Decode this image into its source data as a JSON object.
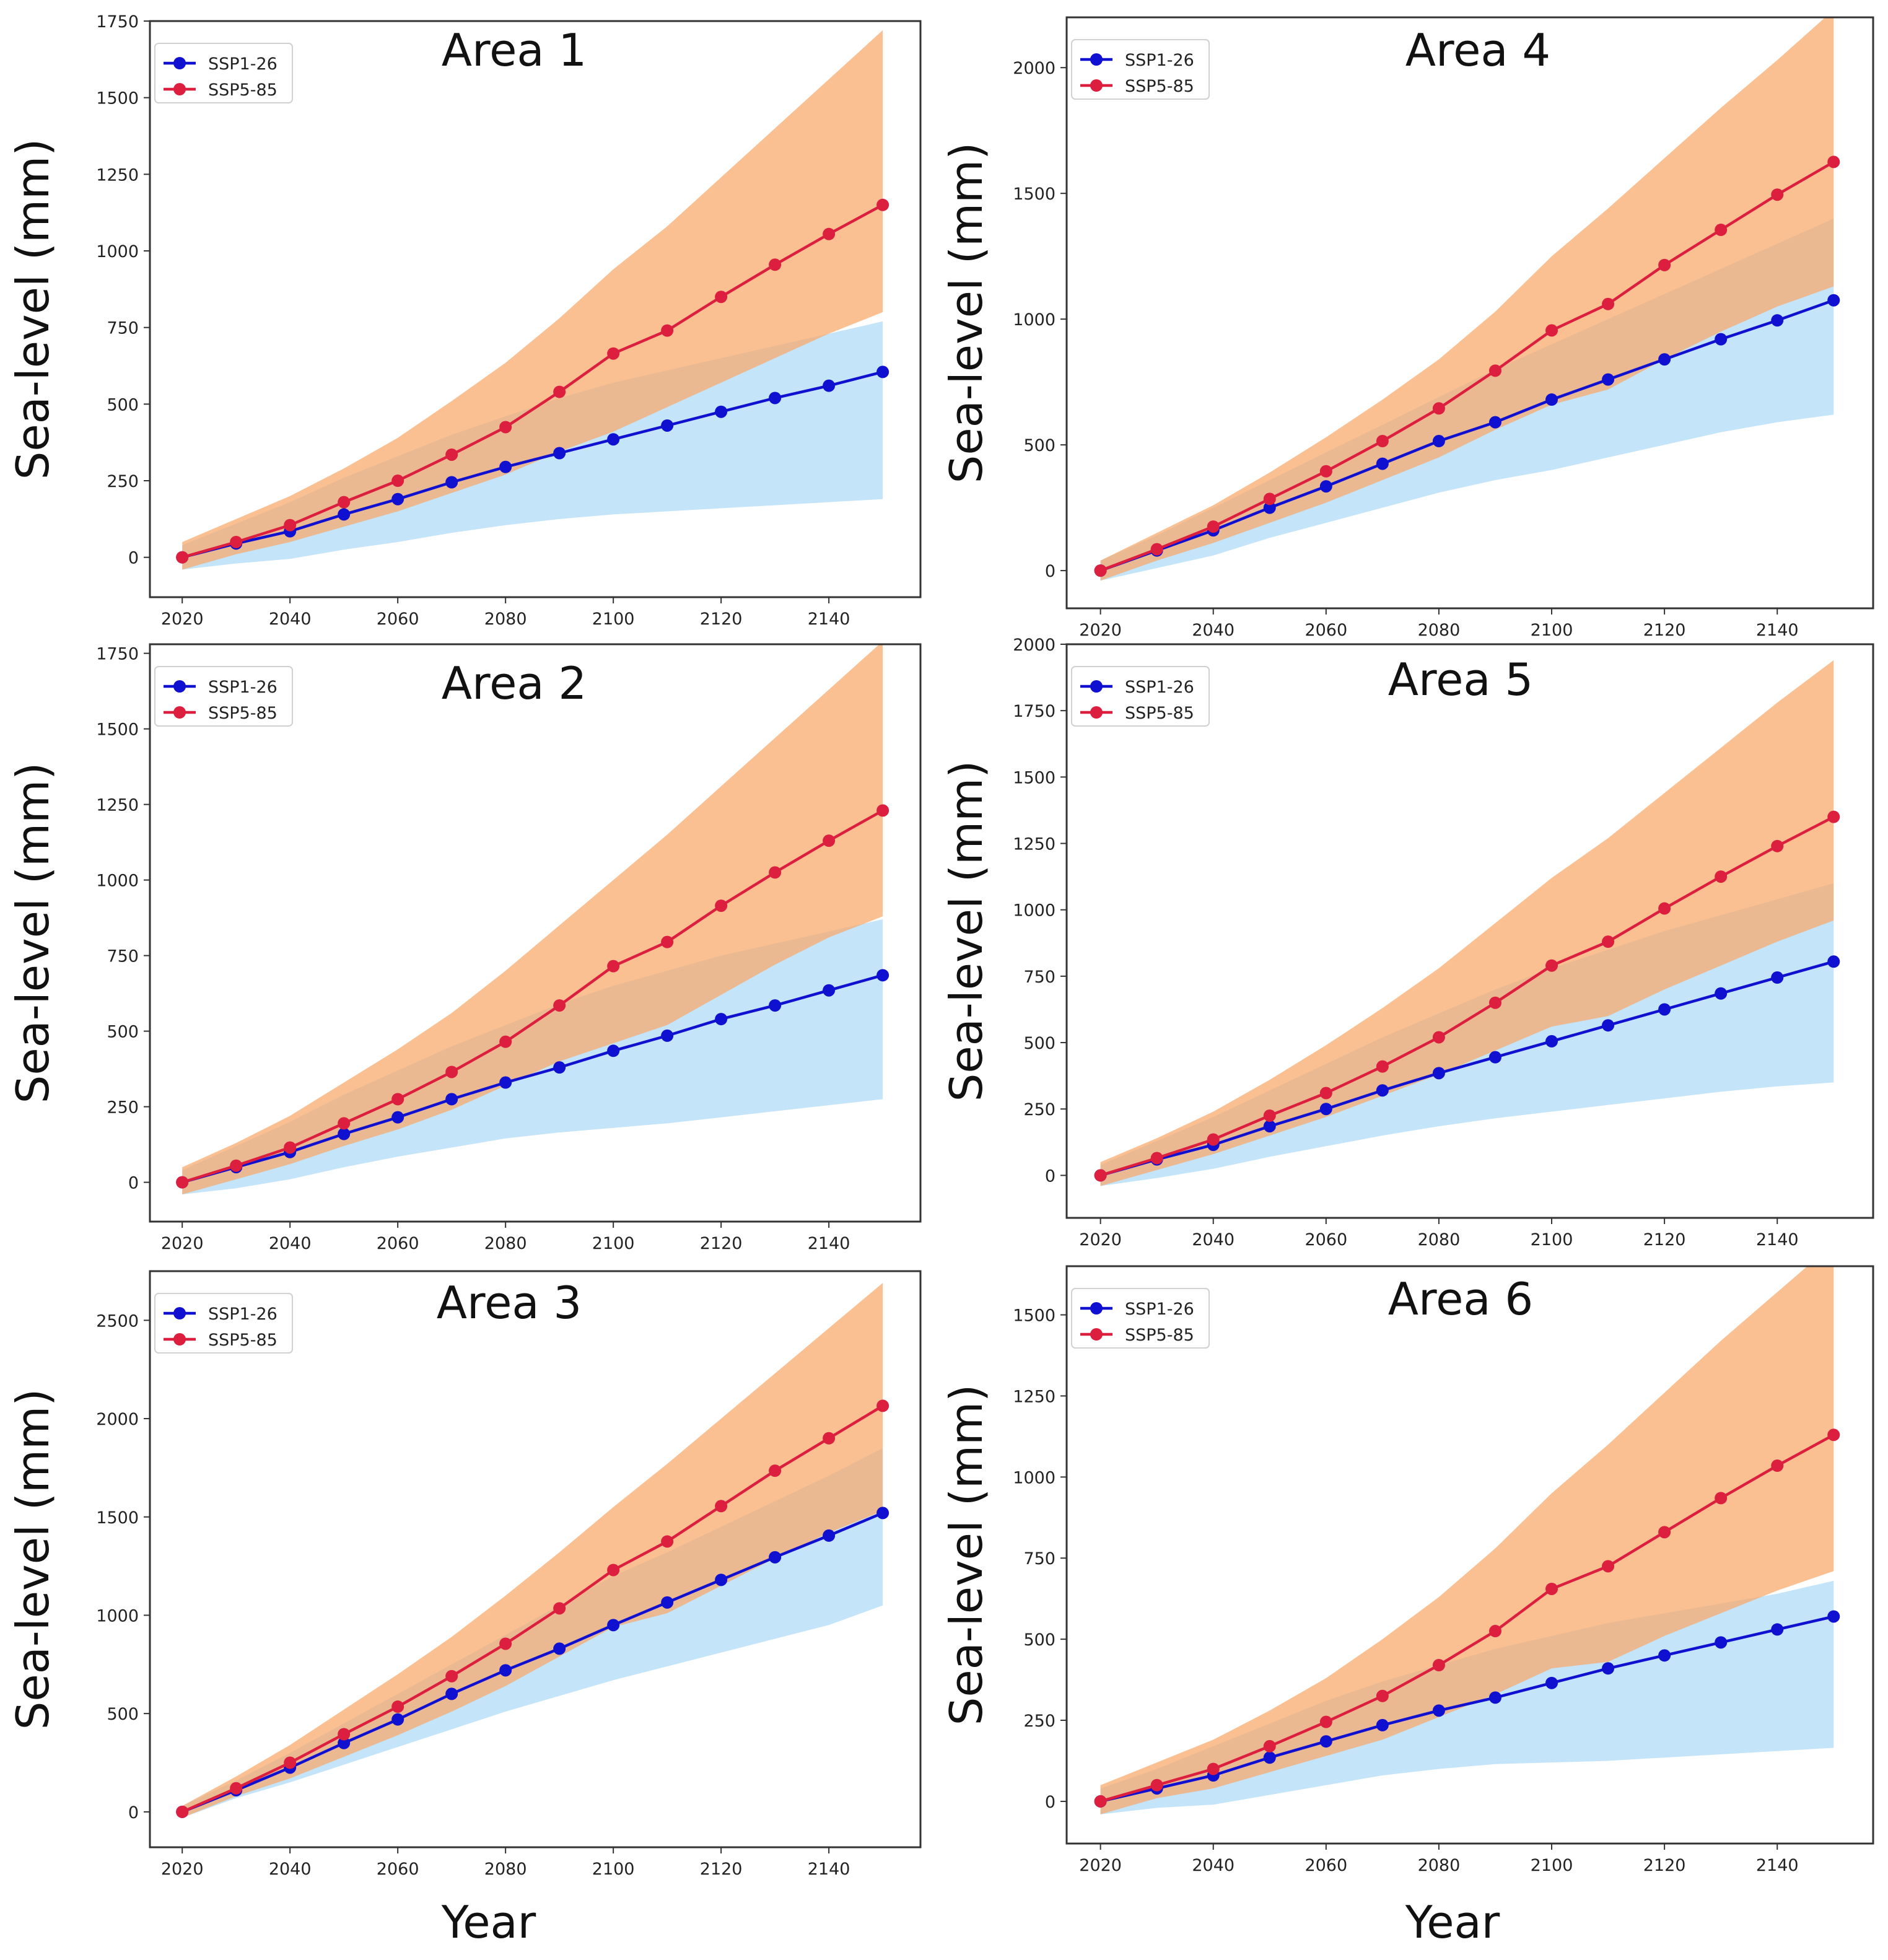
{
  "figure": {
    "bottom_xlabels": [
      "Year",
      "Year"
    ],
    "colors": {
      "ssp126_line": "#1010d0",
      "ssp585_line": "#dc1f3f",
      "ssp126_band": "#9fd3f5",
      "ssp585_band": "#f9a868",
      "axes_edge": "#333333"
    }
  },
  "chart_data": [
    {
      "type": "line",
      "title": "Area 1",
      "xlabel": "",
      "ylabel": "Sea-level (mm)",
      "xlim": [
        2014,
        2157
      ],
      "ylim": [
        -130,
        1750
      ],
      "xticks": [
        2020,
        2040,
        2060,
        2080,
        2100,
        2120,
        2140
      ],
      "yticks": [
        0,
        250,
        500,
        750,
        1000,
        1250,
        1500,
        1750
      ],
      "legend": "top-left",
      "x": [
        2020,
        2030,
        2040,
        2050,
        2060,
        2070,
        2080,
        2090,
        2100,
        2110,
        2120,
        2130,
        2140,
        2150
      ],
      "series": [
        {
          "name": "SSP1-26",
          "color": "#1010d0",
          "values": [
            0,
            45,
            85,
            140,
            190,
            245,
            295,
            340,
            385,
            430,
            475,
            520,
            560,
            605
          ],
          "lower": [
            -40,
            -20,
            -5,
            25,
            50,
            80,
            105,
            125,
            140,
            150,
            160,
            170,
            180,
            190
          ],
          "upper": [
            40,
            110,
            180,
            260,
            330,
            400,
            460,
            520,
            570,
            610,
            650,
            690,
            730,
            770
          ]
        },
        {
          "name": "SSP5-85",
          "color": "#dc1f3f",
          "values": [
            0,
            50,
            105,
            180,
            250,
            335,
            425,
            540,
            665,
            740,
            850,
            955,
            1055,
            1150
          ],
          "lower": [
            -40,
            10,
            50,
            100,
            150,
            210,
            270,
            345,
            410,
            490,
            570,
            650,
            730,
            800
          ],
          "upper": [
            50,
            125,
            200,
            290,
            390,
            510,
            635,
            780,
            940,
            1080,
            1240,
            1400,
            1560,
            1720
          ]
        }
      ]
    },
    {
      "type": "line",
      "title": "Area 4",
      "xlabel": "",
      "ylabel": "Sea-level (mm)",
      "xlim": [
        2014,
        2157
      ],
      "ylim": [
        -150,
        2200
      ],
      "xticks": [
        2020,
        2040,
        2060,
        2080,
        2100,
        2120,
        2140
      ],
      "yticks": [
        0,
        500,
        1000,
        1500,
        2000
      ],
      "legend": "top-left",
      "x": [
        2020,
        2030,
        2040,
        2050,
        2060,
        2070,
        2080,
        2090,
        2100,
        2110,
        2120,
        2130,
        2140,
        2150
      ],
      "series": [
        {
          "name": "SSP1-26",
          "color": "#1010d0",
          "values": [
            0,
            80,
            160,
            250,
            335,
            425,
            515,
            590,
            680,
            760,
            840,
            920,
            995,
            1075
          ],
          "lower": [
            -40,
            10,
            60,
            130,
            190,
            250,
            310,
            360,
            400,
            450,
            500,
            550,
            590,
            620
          ],
          "upper": [
            40,
            140,
            250,
            360,
            470,
            580,
            690,
            800,
            900,
            1000,
            1100,
            1200,
            1300,
            1400
          ]
        },
        {
          "name": "SSP5-85",
          "color": "#dc1f3f",
          "values": [
            0,
            85,
            175,
            285,
            395,
            515,
            645,
            795,
            955,
            1060,
            1215,
            1355,
            1495,
            1625
          ],
          "lower": [
            -40,
            40,
            110,
            190,
            270,
            360,
            450,
            560,
            660,
            720,
            840,
            950,
            1050,
            1130
          ],
          "upper": [
            40,
            150,
            260,
            390,
            530,
            680,
            840,
            1030,
            1250,
            1440,
            1640,
            1840,
            2030,
            2230
          ]
        }
      ]
    },
    {
      "type": "line",
      "title": "Area 2",
      "xlabel": "",
      "ylabel": "Sea-level (mm)",
      "xlim": [
        2014,
        2157
      ],
      "ylim": [
        -130,
        1780
      ],
      "xticks": [
        2020,
        2040,
        2060,
        2080,
        2100,
        2120,
        2140
      ],
      "yticks": [
        0,
        250,
        500,
        750,
        1000,
        1250,
        1500,
        1750
      ],
      "legend": "top-left",
      "x": [
        2020,
        2030,
        2040,
        2050,
        2060,
        2070,
        2080,
        2090,
        2100,
        2110,
        2120,
        2130,
        2140,
        2150
      ],
      "series": [
        {
          "name": "SSP1-26",
          "color": "#1010d0",
          "values": [
            0,
            50,
            100,
            160,
            215,
            275,
            330,
            380,
            435,
            485,
            540,
            585,
            635,
            685
          ],
          "lower": [
            -40,
            -20,
            10,
            50,
            85,
            115,
            145,
            165,
            180,
            195,
            215,
            235,
            255,
            275
          ],
          "upper": [
            40,
            120,
            200,
            290,
            370,
            450,
            520,
            590,
            650,
            700,
            750,
            790,
            830,
            870
          ]
        },
        {
          "name": "SSP5-85",
          "color": "#dc1f3f",
          "values": [
            0,
            55,
            115,
            195,
            275,
            365,
            465,
            585,
            715,
            795,
            915,
            1025,
            1130,
            1230
          ],
          "lower": [
            -40,
            10,
            60,
            120,
            175,
            240,
            320,
            400,
            460,
            520,
            620,
            720,
            810,
            880
          ],
          "upper": [
            50,
            130,
            220,
            330,
            440,
            560,
            700,
            850,
            1000,
            1150,
            1310,
            1470,
            1630,
            1790
          ]
        }
      ]
    },
    {
      "type": "line",
      "title": "Area 5",
      "xlabel": "",
      "ylabel": "Sea-level (mm)",
      "xlim": [
        2014,
        2157
      ],
      "ylim": [
        -160,
        2000
      ],
      "xticks": [
        2020,
        2040,
        2060,
        2080,
        2100,
        2120,
        2140
      ],
      "yticks": [
        0,
        250,
        500,
        750,
        1000,
        1250,
        1500,
        1750,
        2000
      ],
      "legend": "top-left",
      "x": [
        2020,
        2030,
        2040,
        2050,
        2060,
        2070,
        2080,
        2090,
        2100,
        2110,
        2120,
        2130,
        2140,
        2150
      ],
      "series": [
        {
          "name": "SSP1-26",
          "color": "#1010d0",
          "values": [
            0,
            60,
            115,
            185,
            250,
            320,
            385,
            445,
            505,
            565,
            625,
            685,
            745,
            805
          ],
          "lower": [
            -40,
            -10,
            25,
            70,
            110,
            150,
            185,
            215,
            240,
            265,
            290,
            315,
            335,
            350
          ],
          "upper": [
            40,
            130,
            220,
            320,
            420,
            520,
            610,
            700,
            780,
            850,
            920,
            980,
            1040,
            1100
          ]
        },
        {
          "name": "SSP5-85",
          "color": "#dc1f3f",
          "values": [
            0,
            65,
            135,
            225,
            310,
            410,
            520,
            650,
            790,
            880,
            1005,
            1125,
            1240,
            1350
          ],
          "lower": [
            -40,
            20,
            80,
            150,
            220,
            300,
            380,
            470,
            560,
            600,
            700,
            790,
            880,
            960
          ],
          "upper": [
            50,
            140,
            240,
            360,
            490,
            630,
            780,
            950,
            1120,
            1270,
            1440,
            1610,
            1780,
            1940
          ]
        }
      ]
    },
    {
      "type": "line",
      "title": "Area 3",
      "xlabel": "",
      "ylabel": "Sea-level (mm)",
      "xlim": [
        2014,
        2157
      ],
      "ylim": [
        -180,
        2750
      ],
      "xticks": [
        2020,
        2040,
        2060,
        2080,
        2100,
        2120,
        2140
      ],
      "yticks": [
        0,
        500,
        1000,
        1500,
        2000,
        2500
      ],
      "legend": "top-left",
      "x": [
        2020,
        2030,
        2040,
        2050,
        2060,
        2070,
        2080,
        2090,
        2100,
        2110,
        2120,
        2130,
        2140,
        2150
      ],
      "series": [
        {
          "name": "SSP1-26",
          "color": "#1010d0",
          "values": [
            0,
            110,
            225,
            350,
            470,
            600,
            720,
            830,
            950,
            1065,
            1180,
            1295,
            1405,
            1520
          ],
          "lower": [
            -30,
            70,
            150,
            240,
            330,
            420,
            510,
            590,
            670,
            740,
            810,
            880,
            950,
            1050
          ],
          "upper": [
            30,
            160,
            300,
            450,
            600,
            750,
            900,
            1050,
            1200,
            1320,
            1450,
            1580,
            1710,
            1850
          ]
        },
        {
          "name": "SSP5-85",
          "color": "#dc1f3f",
          "values": [
            0,
            120,
            250,
            395,
            535,
            690,
            855,
            1035,
            1230,
            1375,
            1555,
            1735,
            1900,
            2065
          ],
          "lower": [
            -30,
            80,
            170,
            280,
            390,
            510,
            640,
            790,
            940,
            1010,
            1150,
            1290,
            1420,
            1530
          ],
          "upper": [
            30,
            180,
            340,
            520,
            700,
            890,
            1100,
            1320,
            1550,
            1770,
            2000,
            2230,
            2460,
            2690
          ]
        }
      ]
    },
    {
      "type": "line",
      "title": "Area 6",
      "xlabel": "",
      "ylabel": "Sea-level (mm)",
      "xlim": [
        2014,
        2157
      ],
      "ylim": [
        -130,
        1650
      ],
      "xticks": [
        2020,
        2040,
        2060,
        2080,
        2100,
        2120,
        2140
      ],
      "yticks": [
        0,
        250,
        500,
        750,
        1000,
        1250,
        1500
      ],
      "legend": "top-left",
      "x": [
        2020,
        2030,
        2040,
        2050,
        2060,
        2070,
        2080,
        2090,
        2100,
        2110,
        2120,
        2130,
        2140,
        2150
      ],
      "series": [
        {
          "name": "SSP1-26",
          "color": "#1010d0",
          "values": [
            0,
            40,
            80,
            135,
            185,
            235,
            280,
            320,
            365,
            410,
            450,
            490,
            530,
            570
          ],
          "lower": [
            -40,
            -20,
            -10,
            20,
            50,
            80,
            100,
            115,
            120,
            125,
            135,
            145,
            155,
            165
          ],
          "upper": [
            40,
            100,
            170,
            240,
            310,
            370,
            420,
            470,
            510,
            550,
            580,
            610,
            640,
            680
          ]
        },
        {
          "name": "SSP5-85",
          "color": "#dc1f3f",
          "values": [
            0,
            50,
            100,
            170,
            245,
            325,
            420,
            525,
            655,
            725,
            830,
            935,
            1035,
            1130
          ],
          "lower": [
            -40,
            10,
            40,
            90,
            140,
            190,
            260,
            330,
            410,
            430,
            510,
            580,
            650,
            710
          ],
          "upper": [
            50,
            120,
            190,
            280,
            380,
            500,
            630,
            780,
            950,
            1100,
            1260,
            1420,
            1570,
            1720
          ]
        }
      ]
    }
  ]
}
